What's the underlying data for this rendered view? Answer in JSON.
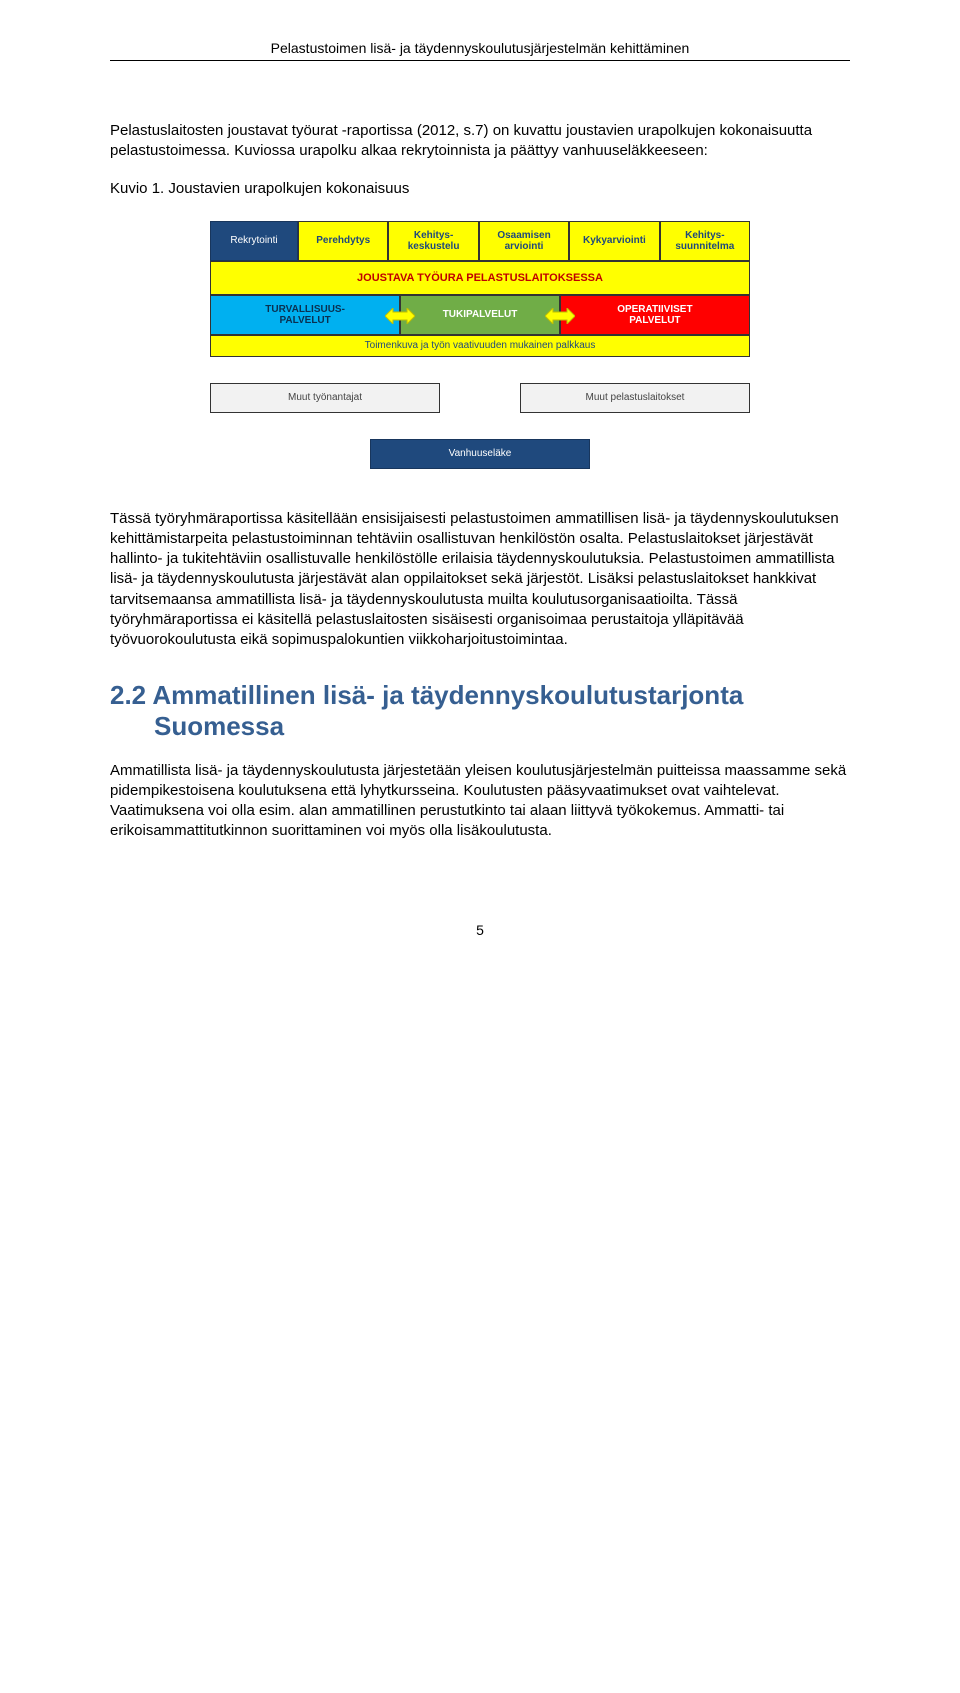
{
  "header_title": "Pelastustoimen lisä- ja täydennyskoulutusjärjestelmän kehittäminen",
  "intro_paragraph": "Pelastuslaitosten joustavat työurat -raportissa (2012, s.7) on kuvattu joustavien urapolkujen kokonaisuutta pelastustoimessa. Kuviossa urapolku alkaa rekrytoinnista ja päättyy vanhuuseläkkeeseen:",
  "kuvio_label": "Kuvio 1. Joustavien urapolkujen kokonaisuus",
  "diagram": {
    "type": "flowchart",
    "row1": {
      "rekrytointi": "Rekrytointi",
      "perehdytys": "Perehdytys",
      "kehityskeskustelu": "Kehitys-\nkeskustelu",
      "osaamisen_arviointi": "Osaamisen\narviointi",
      "kykyarviointi": "Kykyarviointi",
      "kehityssuunnitelma": "Kehitys-\nsuunnitelma"
    },
    "joustava": "JOUSTAVA TYÖURA PELASTUSLAITOKSESSA",
    "row3": {
      "turvallisuus": "TURVALLISUUS-\nPALVELUT",
      "tukipalvelut": "TUKIPALVELUT",
      "operatiiviset": "OPERATIIVISET\nPALVELUT"
    },
    "toimenkuva": "Toimenkuva ja työn vaativuuden mukainen palkkaus",
    "row5": {
      "muut_tyonantajat": "Muut työnantajat",
      "muut_pelastuslaitokset": "Muut pelastuslaitokset"
    },
    "vanhuuselake": "Vanhuuseläke",
    "colors": {
      "dark_blue": "#1f497d",
      "yellow": "#ffff00",
      "yellow_text": "#1f497d",
      "red_text": "#c00000",
      "light_blue": "#00b0f0",
      "green": "#70ad47",
      "red": "#ff0000",
      "grey": "#f2f2f2",
      "arrow_fill": "#ffff00",
      "arrow_stroke": "#bfbf00"
    }
  },
  "main_paragraph": "Tässä työryhmäraportissa käsitellään ensisijaisesti pelastustoimen ammatillisen lisä- ja täydennyskoulutuksen kehittämistarpeita pelastustoiminnan tehtäviin osallistuvan henkilöstön osalta. Pelastuslaitokset järjestävät hallinto- ja tukitehtäviin osallistuvalle henkilöstölle erilaisia täydennyskoulutuksia. Pelastustoimen ammatillista lisä- ja täydennyskoulutusta järjestävät alan oppilaitokset sekä järjestöt. Lisäksi pelastuslaitokset hankkivat tarvitsemaansa ammatillista lisä- ja täydennyskoulutusta muilta koulutusorganisaatioilta. Tässä työryhmäraportissa ei käsitellä pelastuslaitosten sisäisesti organisoimaa perustaitoja ylläpitävää työvuorokoulutusta eikä sopimuspalokuntien viikkoharjoitustoimintaa.",
  "heading_line1": "2.2 Ammatillinen lisä- ja täydennyskoulutustarjonta",
  "heading_line2": "Suomessa",
  "para2": "Ammatillista lisä- ja täydennyskoulutusta järjestetään yleisen koulutusjärjestelmän puitteissa maassamme sekä pidempikestoisena koulutuksena että lyhytkursseina. Koulutusten pääsyvaatimukset ovat vaihtelevat. Vaatimuksena voi olla esim. alan ammatillinen perustutkinto tai alaan liittyvä työkokemus. Ammatti- tai erikoisammattitutkinnon suorittaminen voi myös olla lisäkoulutusta.",
  "page_number": "5"
}
